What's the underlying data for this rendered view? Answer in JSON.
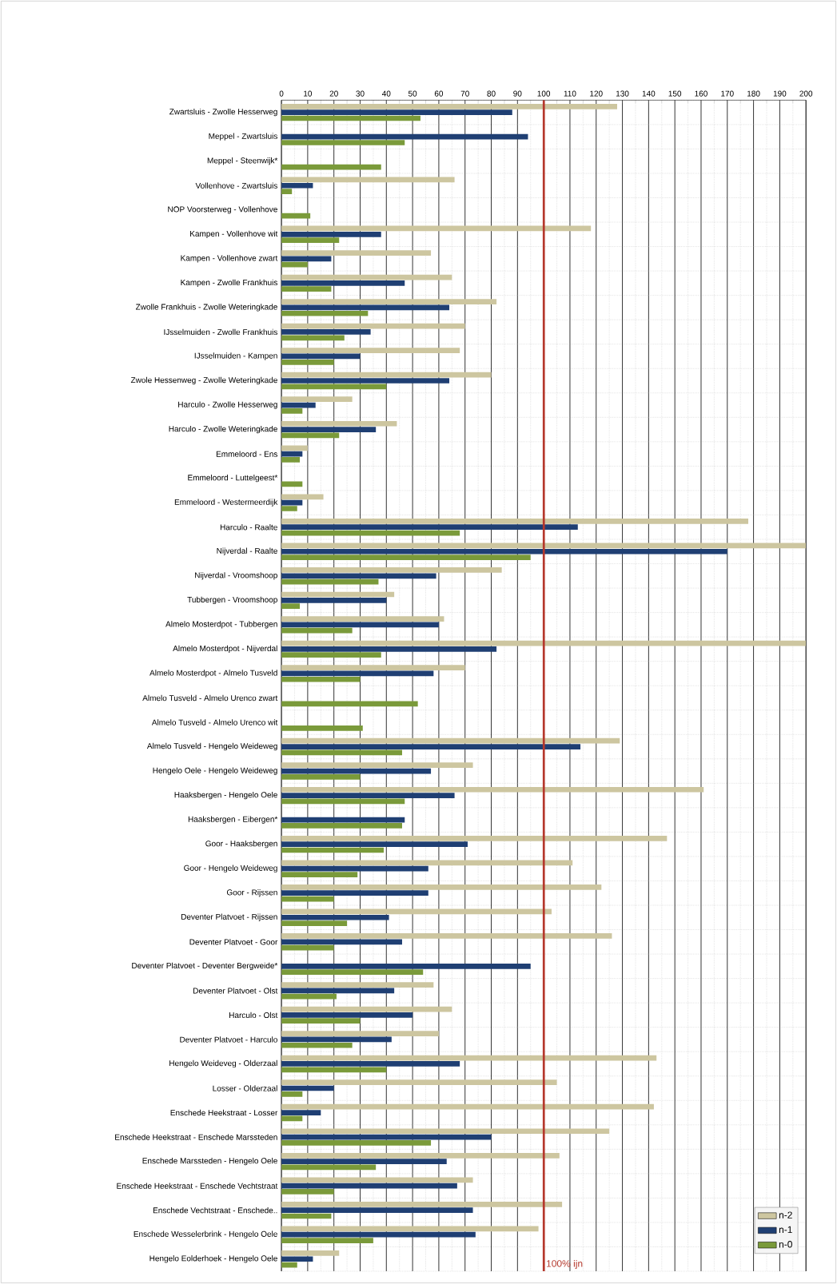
{
  "chart_data": {
    "type": "bar",
    "orientation": "horizontal",
    "categories": [
      "Zwartsluis - Zwolle Hesserweg",
      "Meppel - Zwartsluis",
      "Meppel - Steenwijk*",
      "Vollenhove - Zwartsluis",
      "NOP Voorsterweg - Vollenhove",
      "Kampen - Vollenhove wit",
      "Kampen - Vollenhove zwart",
      "Kampen - Zwolle Frankhuis",
      "Zwolle Frankhuis - Zwolle Weteringkade",
      "IJsselmuiden - Zwolle Frankhuis",
      "IJsselmuiden - Kampen",
      "Zwole Hessenweg - Zwolle Weteringkade",
      "Harculo - Zwolle Hesserweg",
      "Harculo - Zwolle Weteringkade",
      "Emmeloord - Ens",
      "Emmeloord - Luttelgeest*",
      "Emmeloord - Westermeerdijk",
      "Harculo - Raalte",
      "Nijverdal - Raalte",
      "Nijverdal - Vroomshoop",
      "Tubbergen - Vroomshoop",
      "Almelo Mosterdpot - Tubbergen",
      "Almelo Mosterdpot - Nijverdal",
      "Almelo Mosterdpot - Almelo Tusveld",
      "Almelo Tusveld - Almelo Urenco zwart",
      "Almelo Tusveld - Almelo Urenco wit",
      "Almelo Tusveld - Hengelo Weideweg",
      "Hengelo Oele - Hengelo Weideweg",
      "Haaksbergen - Hengelo Oele",
      "Haaksbergen - Eibergen*",
      "Goor - Haaksbergen",
      "Goor - Hengelo Weideweg",
      "Goor - Rijssen",
      "Deventer Platvoet - Rijssen",
      "Deventer Platvoet - Goor",
      "Deventer Platvoet - Deventer Bergweide*",
      "Deventer Platvoet - Olst",
      "Harculo - Olst",
      "Deventer Platvoet - Harculo",
      "Hengelo Weideveg - Olderzaal",
      "Losser - Olderzaal",
      "Enschede Heekstraat - Losser",
      "Enschede Heekstraat - Enschede Marssteden",
      "Enschede Marssteden - Hengelo Oele",
      "Enschede Heekstraat - Enschede Vechtstraat",
      "Enschede Vechtstraat - Enschede..",
      "Enschede Wesselerbrink - Hengelo Oele",
      "Hengelo Eolderhoek - Hengelo Oele"
    ],
    "series": [
      {
        "name": "n-2",
        "color": "#cdc6a0",
        "values": [
          128,
          null,
          null,
          66,
          null,
          118,
          57,
          65,
          82,
          70,
          68,
          80,
          27,
          44,
          10,
          null,
          16,
          178,
          200,
          84,
          43,
          62,
          200,
          70,
          null,
          null,
          129,
          73,
          161,
          null,
          147,
          111,
          122,
          103,
          126,
          null,
          58,
          65,
          60,
          143,
          105,
          142,
          125,
          106,
          73,
          107,
          98,
          22
        ]
      },
      {
        "name": "n-1",
        "color": "#1f3f73",
        "values": [
          88,
          94,
          null,
          12,
          null,
          38,
          19,
          47,
          64,
          34,
          30,
          64,
          13,
          36,
          8,
          null,
          8,
          113,
          170,
          59,
          40,
          60,
          82,
          58,
          null,
          null,
          114,
          57,
          66,
          47,
          71,
          56,
          56,
          41,
          46,
          95,
          43,
          50,
          42,
          68,
          20,
          15,
          80,
          63,
          67,
          73,
          74,
          12
        ]
      },
      {
        "name": "n-0",
        "color": "#7a9a3a",
        "values": [
          53,
          47,
          38,
          4,
          11,
          22,
          10,
          19,
          33,
          24,
          20,
          40,
          8,
          22,
          7,
          8,
          6,
          68,
          95,
          37,
          7,
          27,
          38,
          30,
          52,
          31,
          46,
          30,
          47,
          46,
          39,
          29,
          20,
          25,
          20,
          54,
          21,
          30,
          27,
          40,
          8,
          8,
          57,
          36,
          20,
          19,
          35,
          6
        ]
      }
    ],
    "xlim": [
      0,
      200
    ],
    "xticks": [
      0,
      10,
      20,
      30,
      40,
      50,
      60,
      70,
      80,
      90,
      100,
      110,
      120,
      130,
      140,
      150,
      160,
      170,
      180,
      190,
      200
    ],
    "ref_lines": [
      {
        "axis": "x",
        "value": 100,
        "label": "100% ijn",
        "color": "#b5382c"
      }
    ],
    "grid": true,
    "legend": "bottom right"
  }
}
